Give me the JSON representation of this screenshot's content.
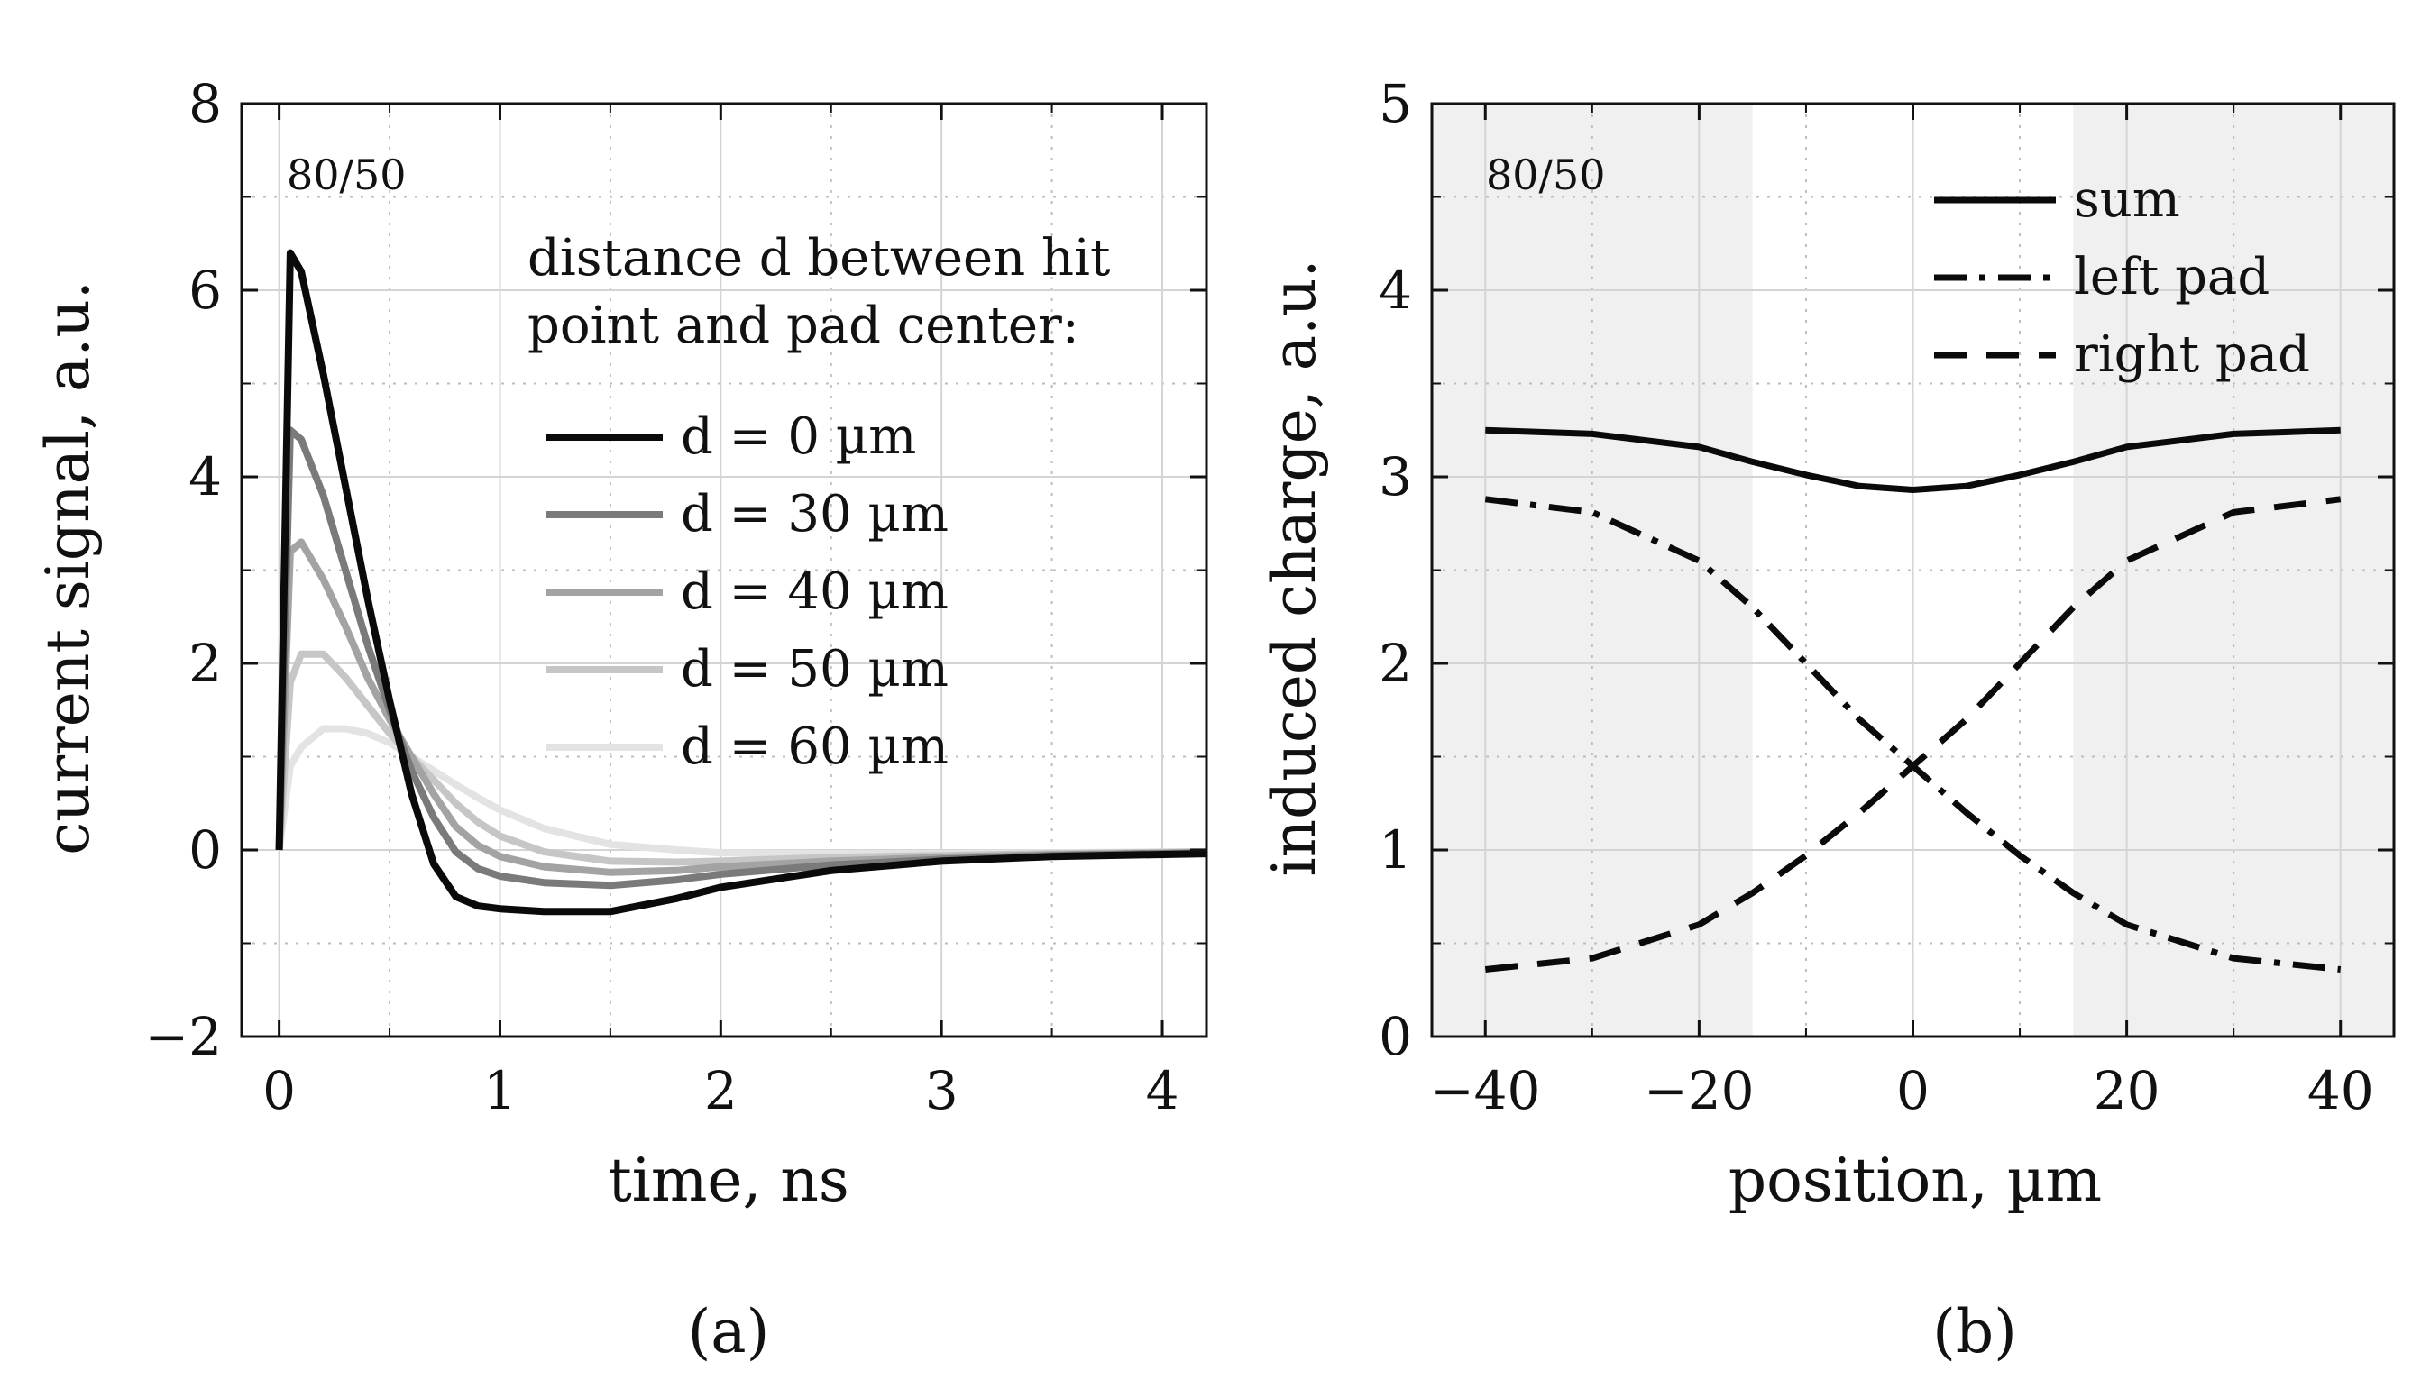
{
  "panels": [
    {
      "caption": "(a)",
      "annotation": "80/50",
      "legend_title": [
        "distance d between hit",
        "point and pad center:"
      ]
    },
    {
      "caption": "(b)",
      "annotation": "80/50"
    }
  ],
  "chart_data": [
    {
      "type": "line",
      "xlabel": "time, ns",
      "ylabel": "current signal, a.u.",
      "xlim": [
        -0.17,
        4.2
      ],
      "ylim": [
        -2,
        8
      ],
      "xticks": [
        0,
        1,
        2,
        3,
        4
      ],
      "yticks": [
        -2,
        0,
        2,
        4,
        6,
        8
      ],
      "xtick_labels": [
        "0",
        "1",
        "2",
        "3",
        "4"
      ],
      "ytick_labels": [
        "−2",
        "0",
        "2",
        "4",
        "6",
        "8"
      ],
      "grid": true,
      "legend_position": "top-right",
      "series": [
        {
          "name": "d = 0 µm",
          "color": "#0a0a0a",
          "x": [
            0,
            0.05,
            0.1,
            0.2,
            0.3,
            0.4,
            0.5,
            0.6,
            0.7,
            0.8,
            0.9,
            1.0,
            1.2,
            1.5,
            1.8,
            2.0,
            2.5,
            3.0,
            3.5,
            4.2
          ],
          "y": [
            0,
            6.4,
            6.2,
            5.1,
            3.9,
            2.7,
            1.6,
            0.6,
            -0.15,
            -0.5,
            -0.6,
            -0.63,
            -0.66,
            -0.66,
            -0.52,
            -0.4,
            -0.22,
            -0.12,
            -0.07,
            -0.04
          ]
        },
        {
          "name": "d = 30 µm",
          "color": "#7a7a7a",
          "x": [
            0,
            0.05,
            0.1,
            0.2,
            0.3,
            0.4,
            0.5,
            0.6,
            0.7,
            0.8,
            0.9,
            1.0,
            1.2,
            1.5,
            1.8,
            2.0,
            2.5,
            3.0,
            3.5,
            4.2
          ],
          "y": [
            0,
            4.5,
            4.4,
            3.8,
            3.0,
            2.2,
            1.5,
            0.85,
            0.35,
            -0.02,
            -0.2,
            -0.28,
            -0.35,
            -0.38,
            -0.32,
            -0.26,
            -0.16,
            -0.1,
            -0.06,
            -0.03
          ]
        },
        {
          "name": "d = 40 µm",
          "color": "#a3a3a3",
          "x": [
            0,
            0.05,
            0.1,
            0.2,
            0.3,
            0.4,
            0.5,
            0.6,
            0.7,
            0.8,
            0.9,
            1.0,
            1.2,
            1.5,
            1.8,
            2.0,
            2.5,
            3.0,
            3.5,
            4.2
          ],
          "y": [
            0,
            3.2,
            3.3,
            2.9,
            2.4,
            1.85,
            1.4,
            1.0,
            0.6,
            0.25,
            0.05,
            -0.07,
            -0.18,
            -0.24,
            -0.22,
            -0.18,
            -0.12,
            -0.08,
            -0.05,
            -0.03
          ]
        },
        {
          "name": "d = 50 µm",
          "color": "#c6c6c6",
          "x": [
            0,
            0.05,
            0.1,
            0.2,
            0.3,
            0.4,
            0.5,
            0.6,
            0.7,
            0.8,
            0.9,
            1.0,
            1.2,
            1.5,
            1.8,
            2.0,
            2.5,
            3.0,
            3.5,
            4.2
          ],
          "y": [
            0,
            1.8,
            2.1,
            2.1,
            1.85,
            1.55,
            1.25,
            1.0,
            0.75,
            0.5,
            0.3,
            0.15,
            -0.02,
            -0.12,
            -0.13,
            -0.12,
            -0.08,
            -0.06,
            -0.04,
            -0.02
          ]
        },
        {
          "name": "d = 60 µm",
          "color": "#e3e3e3",
          "x": [
            0,
            0.05,
            0.1,
            0.2,
            0.3,
            0.4,
            0.5,
            0.6,
            0.7,
            0.8,
            0.9,
            1.0,
            1.2,
            1.5,
            1.8,
            2.0,
            2.5,
            3.0,
            3.5,
            4.2
          ],
          "y": [
            0,
            0.9,
            1.1,
            1.3,
            1.3,
            1.25,
            1.15,
            1.0,
            0.85,
            0.7,
            0.56,
            0.43,
            0.23,
            0.06,
            0.0,
            -0.03,
            -0.04,
            -0.04,
            -0.03,
            -0.02
          ]
        }
      ]
    },
    {
      "type": "line",
      "xlabel": "position, µm",
      "ylabel": "induced charge, a.u.",
      "xlim": [
        -45,
        45
      ],
      "ylim": [
        0,
        5
      ],
      "xticks": [
        -40,
        -20,
        0,
        20,
        40
      ],
      "yticks": [
        0,
        1,
        2,
        3,
        4,
        5
      ],
      "xtick_labels": [
        "−40",
        "−20",
        "0",
        "20",
        "40"
      ],
      "ytick_labels": [
        "0",
        "1",
        "2",
        "3",
        "4",
        "5"
      ],
      "grid": true,
      "legend_position": "top-right",
      "shaded_x_ranges": [
        [
          -40,
          -15
        ],
        [
          15,
          40
        ]
      ],
      "series": [
        {
          "name": "sum",
          "style": "solid",
          "color": "#0a0a0a",
          "x": [
            -40,
            -30,
            -20,
            -15,
            -10,
            -5,
            0,
            5,
            10,
            15,
            20,
            30,
            40
          ],
          "y": [
            3.25,
            3.23,
            3.16,
            3.08,
            3.01,
            2.95,
            2.93,
            2.95,
            3.01,
            3.08,
            3.16,
            3.23,
            3.25
          ]
        },
        {
          "name": "left pad",
          "style": "dashdot",
          "color": "#0a0a0a",
          "x": [
            -40,
            -30,
            -20,
            -15,
            -10,
            -5,
            0,
            5,
            10,
            15,
            20,
            30,
            40
          ],
          "y": [
            2.88,
            2.81,
            2.55,
            2.3,
            2.0,
            1.7,
            1.45,
            1.2,
            0.97,
            0.77,
            0.6,
            0.42,
            0.36
          ]
        },
        {
          "name": "right pad",
          "style": "dashed",
          "color": "#0a0a0a",
          "x": [
            -40,
            -30,
            -20,
            -15,
            -10,
            -5,
            0,
            5,
            10,
            15,
            20,
            30,
            40
          ],
          "y": [
            0.36,
            0.42,
            0.6,
            0.77,
            0.97,
            1.2,
            1.45,
            1.7,
            2.0,
            2.3,
            2.55,
            2.81,
            2.88
          ]
        }
      ]
    }
  ]
}
